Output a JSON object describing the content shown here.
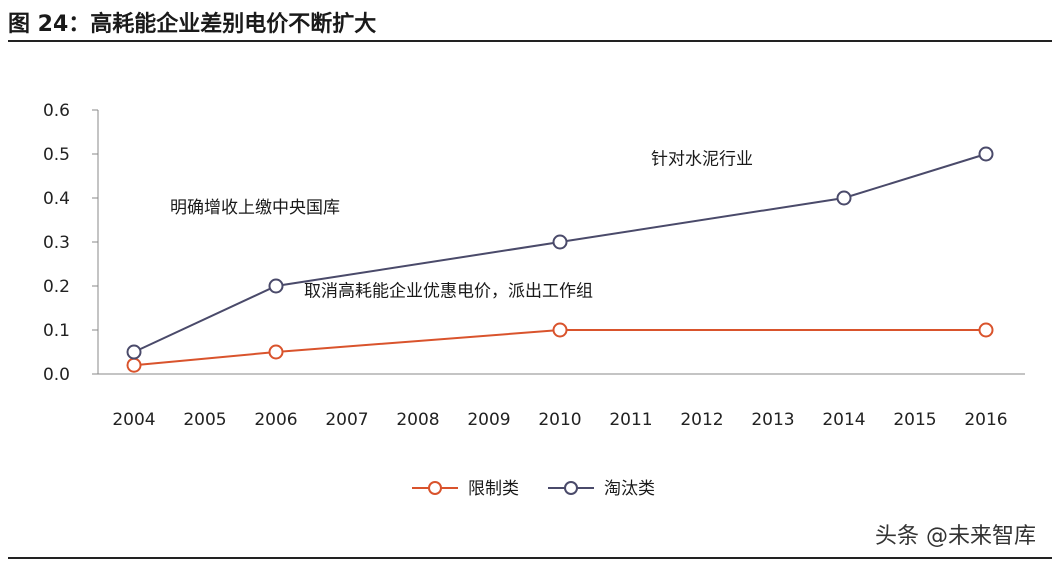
{
  "header": {
    "title": "图 24：高耗能企业差别电价不断扩大"
  },
  "watermark": "头条 @未来智库",
  "chart_data": {
    "type": "line",
    "categories": [
      "2004",
      "2005",
      "2006",
      "2007",
      "2008",
      "2009",
      "2010",
      "2011",
      "2012",
      "2013",
      "2014",
      "2015",
      "2016"
    ],
    "ylim": [
      0,
      0.6
    ],
    "yticks": [
      "0.0",
      "0.1",
      "0.2",
      "0.3",
      "0.4",
      "0.5",
      "0.6"
    ],
    "grid": false,
    "legend_position": "bottom",
    "series": [
      {
        "name": "限制类",
        "color": "#d9532c",
        "points": [
          [
            "2004",
            0.02
          ],
          [
            "2006",
            0.05
          ],
          [
            "2010",
            0.1
          ],
          [
            "2016",
            0.1
          ]
        ]
      },
      {
        "name": "淘汰类",
        "color": "#4a4a6a",
        "points": [
          [
            "2004",
            0.05
          ],
          [
            "2006",
            0.2
          ],
          [
            "2010",
            0.3
          ],
          [
            "2014",
            0.4
          ],
          [
            "2016",
            0.5
          ]
        ]
      }
    ],
    "annotations": [
      {
        "text": "明确增收上缴中央国库",
        "x": "2004",
        "y": 0.38
      },
      {
        "text": "取消高耗能企业优惠电价，派出工作组",
        "x": "2006",
        "y": 0.19
      },
      {
        "text": "针对水泥行业",
        "x": "2012",
        "y": 0.49
      }
    ]
  }
}
